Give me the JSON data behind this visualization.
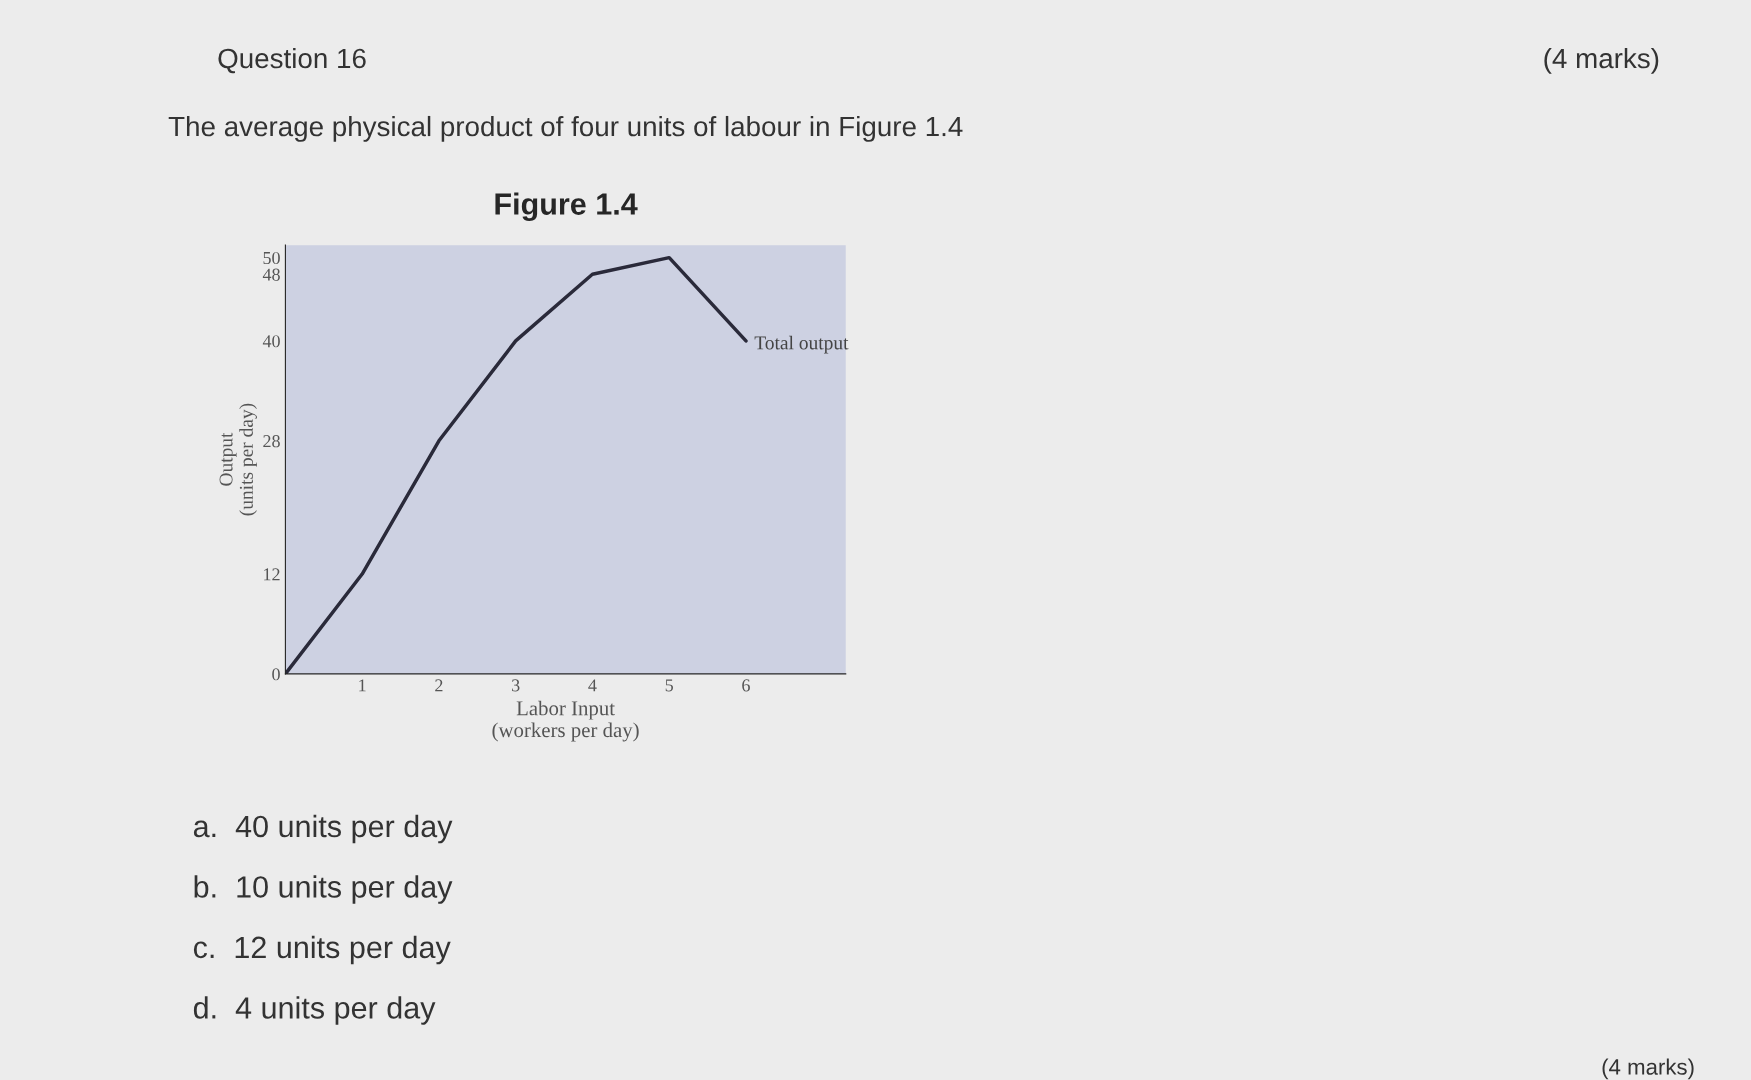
{
  "chart_data": {
    "type": "line",
    "title": "Figure 1.4",
    "xlabel": "Labor Input\n(workers per day)",
    "ylabel": "Output\n(units per day)",
    "x": [
      0,
      1,
      2,
      3,
      4,
      5,
      6
    ],
    "series": [
      {
        "color": "#2a2a3a",
        "values": [
          0,
          12,
          28,
          40,
          48,
          50,
          40
        ]
      }
    ],
    "xlim": [
      0,
      7.3
    ],
    "ylim": [
      0,
      51.5
    ],
    "xticks": [
      1,
      2,
      3,
      4,
      5,
      6
    ],
    "yticks": [
      0,
      12,
      28,
      40,
      48,
      50
    ],
    "marker": "none",
    "line_style": "solid",
    "grid": false,
    "legend": false,
    "annotations": [
      {
        "text": "Total output",
        "x": 6,
        "y": 40
      },
      "Question 16",
      "(4 marks)",
      "The average physical product of four units of labour in Figure 1.4",
      "a.  40 units per day",
      "b.  10 units per day",
      "c.  12 units per day",
      "d.  4 units per day",
      "(4 marks)"
    ]
  }
}
